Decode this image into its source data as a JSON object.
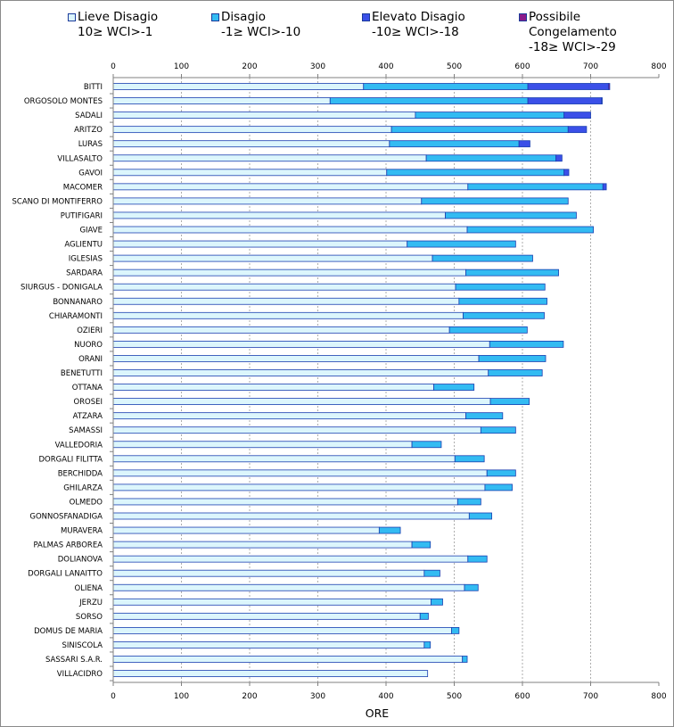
{
  "chart_data": {
    "type": "bar",
    "orientation": "horizontal",
    "stacked": true,
    "title": "",
    "xlabel": "ORE",
    "ylabel": "",
    "xlim": [
      0,
      800
    ],
    "xticks": [
      "0",
      "100",
      "200",
      "300",
      "400",
      "500",
      "600",
      "700",
      "800"
    ],
    "grid": "vertical dashed",
    "legend_position": "top",
    "categories": [
      "BITTI",
      "ORGOSOLO MONTES",
      "SADALI",
      "ARITZO",
      "LURAS",
      "VILLASALTO",
      "GAVOI",
      "MACOMER",
      "SCANO DI MONTIFERRO",
      "PUTIFIGARI",
      "GIAVE",
      "AGLIENTU",
      "IGLESIAS",
      "SARDARA",
      "SIURGUS - DONIGALA",
      "BONNANARO",
      "CHIARAMONTI",
      "OZIERI",
      "NUORO",
      "ORANI",
      "BENETUTTI",
      "OTTANA",
      "OROSEI",
      "ATZARA",
      "SAMASSI",
      "VALLEDORIA",
      "DORGALI FILITTA",
      "BERCHIDDA",
      "GHILARZA",
      "OLMEDO",
      "GONNOSFANADIGA",
      "MURAVERA",
      "PALMAS ARBOREA",
      "DOLIANOVA",
      "DORGALI LANAITTO",
      "OLIENA",
      "JERZU",
      "SORSO",
      "DOMUS DE MARIA",
      "SINISCOLA",
      "SASSARI S.A.R.",
      "VILLACIDRO"
    ],
    "series": [
      {
        "name": "Lieve Disagio",
        "range": "10≥ WCI>-1",
        "color": "#dcf6fc",
        "values": [
          367,
          318,
          443,
          408,
          405,
          459,
          401,
          520,
          452,
          487,
          519,
          431,
          468,
          517,
          502,
          507,
          513,
          493,
          552,
          536,
          550,
          470,
          553,
          517,
          539,
          438,
          501,
          548,
          545,
          505,
          522,
          390,
          438,
          520,
          456,
          515,
          466,
          450,
          496,
          456,
          512,
          461
        ]
      },
      {
        "name": "Disagio",
        "range": "-1≥ WCI>-10",
        "color": "#33bbf2",
        "values": [
          241,
          290,
          218,
          259,
          190,
          190,
          260,
          198,
          215,
          192,
          185,
          159,
          147,
          136,
          131,
          129,
          119,
          114,
          108,
          98,
          79,
          59,
          57,
          54,
          51,
          43,
          43,
          42,
          40,
          34,
          33,
          31,
          27,
          28,
          23,
          20,
          17,
          12,
          11,
          9,
          7,
          0
        ]
      },
      {
        "name": "Elevato Disagio",
        "range": "-10≥ WCI>-18",
        "color": "#3b50e8",
        "values": [
          118,
          108,
          39,
          27,
          16,
          9,
          7,
          5,
          0,
          0,
          0,
          0,
          0,
          0,
          0,
          0,
          0,
          0,
          0,
          0,
          0,
          0,
          0,
          0,
          0,
          0,
          0,
          0,
          0,
          0,
          0,
          0,
          0,
          0,
          0,
          0,
          0,
          0,
          0,
          0,
          0,
          0
        ]
      },
      {
        "name": "Possibile Congelamento",
        "range": "-18≥ WCI>-29",
        "color": "#8a1a8a",
        "values": [
          2,
          1,
          0,
          0,
          0,
          0,
          0,
          0,
          0,
          0,
          0,
          0,
          0,
          0,
          0,
          0,
          0,
          0,
          0,
          0,
          0,
          0,
          0,
          0,
          0,
          0,
          0,
          0,
          0,
          0,
          0,
          0,
          0,
          0,
          0,
          0,
          0,
          0,
          0,
          0,
          0,
          0
        ]
      }
    ]
  }
}
